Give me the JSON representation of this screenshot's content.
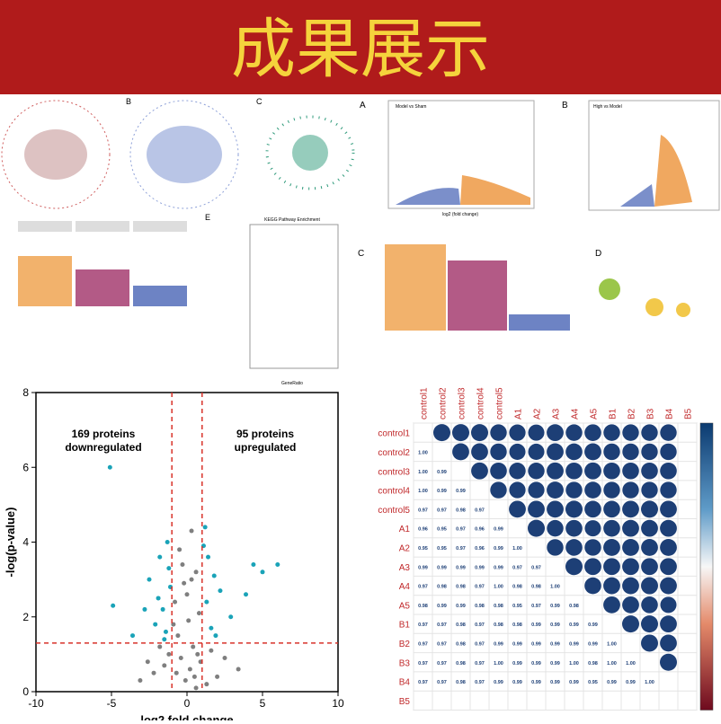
{
  "header": {
    "title": "成果展示"
  },
  "panels": {
    "labels": [
      "B",
      "C",
      "A",
      "B",
      "E",
      "C",
      "D"
    ],
    "kegg_title": "KEGG Pathway Enrichment",
    "kegg_xlabel": "GeneRatio",
    "volcano_a_title": "Model vs Sham",
    "volcano_b_title": "High vs Model",
    "volcano_xlabel": "log2 (fold change)"
  },
  "chart_data": [
    {
      "type": "scatter",
      "xlabel": "log2 fold change",
      "ylabel": "-log(p-value)",
      "annotations": [
        "169 proteins\ndownregulated",
        "95 proteins\nupregulated"
      ],
      "xlim": [
        -10,
        10
      ],
      "xticks": [
        -10,
        -5,
        0,
        5,
        10
      ],
      "ylim": [
        0,
        8
      ],
      "yticks": [
        0,
        2,
        4,
        6,
        8
      ],
      "thresholds": {
        "x": [
          -1,
          1
        ],
        "y": 1.3,
        "color": "#d8332a"
      },
      "series": [
        {
          "color": "#7f7f7f",
          "x": [
            -0.5,
            0.3,
            -0.2,
            0.6,
            -0.8,
            0.1,
            0.4,
            -0.4,
            0.8,
            -0.6,
            0.2,
            -0.1,
            0.5,
            -0.3,
            0.7,
            -0.9,
            0.9,
            -1.5,
            1.6,
            -2.2,
            2.5,
            -3.1,
            3.4,
            -1.8,
            2.0,
            -2.6,
            1.3,
            -1.2,
            0.0,
            0.3,
            -0.7,
            0.6
          ],
          "values": [
            3.8,
            4.3,
            2.9,
            3.2,
            2.4,
            1.9,
            1.2,
            0.9,
            2.1,
            1.5,
            0.6,
            0.3,
            0.4,
            3.4,
            1.0,
            1.8,
            0.8,
            0.7,
            1.1,
            0.5,
            0.9,
            0.3,
            0.6,
            1.2,
            0.4,
            0.8,
            0.2,
            1.0,
            2.6,
            3.0,
            0.5,
            0.1
          ]
        },
        {
          "color": "#1aa3b8",
          "x": [
            -5.1,
            -1.3,
            -1.8,
            -2.5,
            -1.1,
            -1.6,
            -4.9,
            -2.1,
            -1.4,
            -3.6,
            -1.2,
            -1.9,
            1.1,
            1.4,
            1.8,
            2.2,
            1.3,
            4.4,
            5.0,
            6.0,
            2.9,
            1.6,
            1.2,
            3.9,
            1.9,
            -1.5,
            -2.8
          ],
          "values": [
            6.0,
            4.0,
            3.6,
            3.0,
            2.8,
            2.2,
            2.3,
            1.8,
            1.6,
            1.5,
            3.3,
            2.5,
            3.9,
            3.6,
            3.1,
            2.7,
            2.4,
            3.4,
            3.2,
            3.4,
            2.0,
            1.7,
            4.4,
            2.6,
            1.5,
            1.4,
            2.2
          ]
        }
      ]
    },
    {
      "type": "heatmap",
      "color": "#1d3f76",
      "row_labels": [
        "control1",
        "control2",
        "control3",
        "control4",
        "control5",
        "A1",
        "A2",
        "A3",
        "A4",
        "A5",
        "B1",
        "B2",
        "B3",
        "B4",
        "B5"
      ],
      "column_labels": [
        "control1",
        "control2",
        "control3",
        "control4",
        "control5",
        "A1",
        "A2",
        "A3",
        "A4",
        "A5",
        "B1",
        "B2",
        "B3",
        "B4",
        "B5"
      ],
      "values": [
        [],
        [
          1.0
        ],
        [
          1.0,
          0.99
        ],
        [
          1.0,
          0.99,
          0.99
        ],
        [
          0.97,
          0.97,
          0.98,
          0.97
        ],
        [
          0.96,
          0.95,
          0.97,
          0.96,
          0.99
        ],
        [
          0.95,
          0.95,
          0.97,
          0.96,
          0.99,
          1.0
        ],
        [
          0.99,
          0.99,
          0.99,
          0.99,
          0.99,
          0.97,
          0.97
        ],
        [
          0.97,
          0.98,
          0.98,
          0.97,
          1.0,
          0.98,
          0.98,
          1.0
        ],
        [
          0.98,
          0.99,
          0.99,
          0.98,
          0.98,
          0.95,
          0.97,
          0.99,
          0.98
        ],
        [
          0.97,
          0.97,
          0.98,
          0.97,
          0.98,
          0.98,
          0.99,
          0.99,
          0.99,
          0.99
        ],
        [
          0.97,
          0.97,
          0.98,
          0.97,
          0.99,
          0.99,
          0.99,
          0.99,
          0.99,
          0.99,
          1.0
        ],
        [
          0.97,
          0.97,
          0.98,
          0.97,
          1.0,
          0.99,
          0.99,
          0.99,
          1.0,
          0.98,
          1.0,
          1.0
        ],
        [
          0.97,
          0.97,
          0.98,
          0.97,
          0.99,
          0.99,
          0.99,
          0.99,
          0.99,
          0.95,
          0.99,
          0.99,
          1.0
        ],
        []
      ],
      "value_labels": [
        [],
        [
          "1.00"
        ],
        [
          "1.00",
          "0.99"
        ],
        [
          "1.00",
          "0.99",
          "0.99"
        ],
        [
          "0.97",
          "0.97",
          "0.98",
          "0.97"
        ],
        [
          "0.96",
          "0.95",
          "0.97",
          "0.96",
          "0.99"
        ],
        [
          "0.95",
          "0.95",
          "0.97",
          "0.96",
          "0.99",
          "1.00"
        ],
        [
          "0.99",
          "0.99",
          "0.99",
          "0.99",
          "0.99",
          "0.97",
          "0.97"
        ],
        [
          "0.97",
          "0.98",
          "0.98",
          "0.97",
          "1.00",
          "0.98",
          "0.98",
          "1.00"
        ],
        [
          "0.98",
          "0.99",
          "0.99",
          "0.98",
          "0.98",
          "0.95",
          "0.97",
          "0.99",
          "0.98"
        ],
        [
          "0.97",
          "0.97",
          "0.98",
          "0.97",
          "0.98",
          "0.98",
          "0.99",
          "0.99",
          "0.99",
          "0.99"
        ],
        [
          "0.97",
          "0.97",
          "0.98",
          "0.97",
          "0.99",
          "0.99",
          "0.99",
          "0.99",
          "0.99",
          "0.99",
          "1.00"
        ],
        [
          "0.97",
          "0.97",
          "0.98",
          "0.97",
          "1.00",
          "0.99",
          "0.99",
          "0.99",
          "1.00",
          "0.98",
          "1.00",
          "1.00"
        ],
        [
          "0.97",
          "0.97",
          "0.98",
          "0.97",
          "0.99",
          "0.99",
          "0.99",
          "0.99",
          "0.99",
          "0.95",
          "0.99",
          "0.99",
          "1.00"
        ],
        []
      ]
    }
  ]
}
